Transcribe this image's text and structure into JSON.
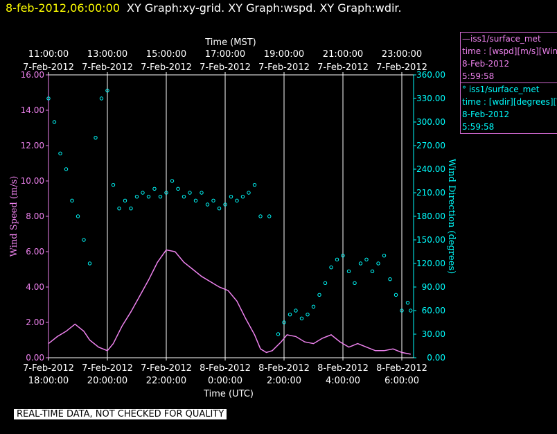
{
  "header": {
    "timestamp": "8-feb-2012,06:00:00",
    "titles": "XY Graph:xy-grid.  XY Graph:wspd.  XY Graph:wdir."
  },
  "colors": {
    "wspd": "#ee82ee",
    "wdir": "#00ffff",
    "grid": "#ffffff",
    "background": "#000000"
  },
  "legend": {
    "wspd": {
      "name": "—iss1/surface_met",
      "field": "time : [wspd][m/s][Wind",
      "date": "8-Feb-2012",
      "time": "5:59:58"
    },
    "wdir": {
      "name": "° iss1/surface_met",
      "field": "time : [wdir][degrees][V",
      "date": "8-Feb-2012",
      "time": "5:59:58"
    }
  },
  "footer": {
    "quality_note": "REAL-TIME DATA, NOT CHECKED FOR QUALITY"
  },
  "chart_data": {
    "type": "line",
    "top_axis": {
      "label": "Time (MST)",
      "ticks": [
        [
          "11:00:00",
          "7-Feb-2012"
        ],
        [
          "13:00:00",
          "7-Feb-2012"
        ],
        [
          "15:00:00",
          "7-Feb-2012"
        ],
        [
          "17:00:00",
          "7-Feb-2012"
        ],
        [
          "19:00:00",
          "7-Feb-2012"
        ],
        [
          "21:00:00",
          "7-Feb-2012"
        ],
        [
          "23:00:00",
          "7-Feb-2012"
        ]
      ]
    },
    "bottom_axis": {
      "label": "Time (UTC)",
      "ticks": [
        [
          "7-Feb-2012",
          "18:00:00"
        ],
        [
          "7-Feb-2012",
          "20:00:00"
        ],
        [
          "7-Feb-2012",
          "22:00:00"
        ],
        [
          "8-Feb-2012",
          "0:00:00"
        ],
        [
          "8-Feb-2012",
          "2:00:00"
        ],
        [
          "8-Feb-2012",
          "4:00:00"
        ],
        [
          "8-Feb-2012",
          "6:00:00"
        ]
      ]
    },
    "x_hours_range": [
      0,
      12.4
    ],
    "x_tick_hours": [
      0,
      2,
      4,
      6,
      8,
      10,
      12
    ],
    "x_grid_hours": [
      2,
      4,
      6,
      8,
      10,
      12
    ],
    "left_axis": {
      "label": "Wind Speed (m/s)",
      "range": [
        0,
        16
      ],
      "ticks": [
        "0.00",
        "2.00",
        "4.00",
        "6.00",
        "8.00",
        "10.00",
        "12.00",
        "14.00",
        "16.00"
      ]
    },
    "right_axis": {
      "label": "Wind Direction (degrees)",
      "range": [
        0,
        360
      ],
      "ticks": [
        "0.00",
        "30.00",
        "60.00",
        "90.00",
        "120.00",
        "150.00",
        "180.00",
        "210.00",
        "240.00",
        "270.00",
        "300.00",
        "330.00",
        "360.00"
      ]
    },
    "series": [
      {
        "name": "iss1/surface_met",
        "axis": "left",
        "style": "line",
        "points": [
          [
            0.0,
            0.8
          ],
          [
            0.3,
            1.2
          ],
          [
            0.6,
            1.5
          ],
          [
            0.9,
            1.9
          ],
          [
            1.2,
            1.5
          ],
          [
            1.4,
            1.0
          ],
          [
            1.7,
            0.6
          ],
          [
            2.0,
            0.4
          ],
          [
            2.2,
            0.8
          ],
          [
            2.5,
            1.8
          ],
          [
            2.8,
            2.6
          ],
          [
            3.1,
            3.5
          ],
          [
            3.4,
            4.4
          ],
          [
            3.7,
            5.4
          ],
          [
            4.0,
            6.1
          ],
          [
            4.3,
            6.0
          ],
          [
            4.6,
            5.4
          ],
          [
            4.9,
            5.0
          ],
          [
            5.2,
            4.6
          ],
          [
            5.5,
            4.3
          ],
          [
            5.8,
            4.0
          ],
          [
            6.1,
            3.8
          ],
          [
            6.4,
            3.2
          ],
          [
            6.7,
            2.2
          ],
          [
            7.0,
            1.3
          ],
          [
            7.2,
            0.5
          ],
          [
            7.4,
            0.3
          ],
          [
            7.6,
            0.4
          ],
          [
            7.9,
            0.9
          ],
          [
            8.1,
            1.3
          ],
          [
            8.4,
            1.2
          ],
          [
            8.7,
            0.9
          ],
          [
            9.0,
            0.8
          ],
          [
            9.3,
            1.1
          ],
          [
            9.6,
            1.3
          ],
          [
            9.9,
            0.9
          ],
          [
            10.2,
            0.6
          ],
          [
            10.5,
            0.8
          ],
          [
            10.8,
            0.6
          ],
          [
            11.1,
            0.4
          ],
          [
            11.4,
            0.4
          ],
          [
            11.7,
            0.5
          ],
          [
            12.0,
            0.3
          ],
          [
            12.3,
            0.2
          ]
        ]
      },
      {
        "name": "iss1/surface_met",
        "axis": "right",
        "style": "markers",
        "points": [
          [
            0.0,
            330
          ],
          [
            0.2,
            300
          ],
          [
            0.4,
            260
          ],
          [
            0.6,
            240
          ],
          [
            0.8,
            200
          ],
          [
            1.0,
            180
          ],
          [
            1.2,
            150
          ],
          [
            1.4,
            120
          ],
          [
            1.6,
            280
          ],
          [
            1.8,
            330
          ],
          [
            2.0,
            340
          ],
          [
            2.2,
            220
          ],
          [
            2.4,
            190
          ],
          [
            2.6,
            200
          ],
          [
            2.8,
            190
          ],
          [
            3.0,
            205
          ],
          [
            3.2,
            210
          ],
          [
            3.4,
            205
          ],
          [
            3.6,
            215
          ],
          [
            3.8,
            205
          ],
          [
            4.0,
            210
          ],
          [
            4.2,
            225
          ],
          [
            4.4,
            215
          ],
          [
            4.6,
            205
          ],
          [
            4.8,
            210
          ],
          [
            5.0,
            200
          ],
          [
            5.2,
            210
          ],
          [
            5.4,
            195
          ],
          [
            5.6,
            200
          ],
          [
            5.8,
            190
          ],
          [
            6.0,
            195
          ],
          [
            6.2,
            205
          ],
          [
            6.4,
            200
          ],
          [
            6.6,
            205
          ],
          [
            6.8,
            210
          ],
          [
            7.0,
            220
          ],
          [
            7.2,
            180
          ],
          [
            7.5,
            180
          ],
          [
            7.8,
            30
          ],
          [
            8.0,
            45
          ],
          [
            8.2,
            55
          ],
          [
            8.4,
            60
          ],
          [
            8.6,
            50
          ],
          [
            8.8,
            55
          ],
          [
            9.0,
            65
          ],
          [
            9.2,
            80
          ],
          [
            9.4,
            95
          ],
          [
            9.6,
            115
          ],
          [
            9.8,
            125
          ],
          [
            10.0,
            130
          ],
          [
            10.2,
            110
          ],
          [
            10.4,
            95
          ],
          [
            10.6,
            120
          ],
          [
            10.8,
            125
          ],
          [
            11.0,
            110
          ],
          [
            11.2,
            120
          ],
          [
            11.4,
            130
          ],
          [
            11.6,
            100
          ],
          [
            11.8,
            80
          ],
          [
            12.0,
            60
          ],
          [
            12.2,
            70
          ],
          [
            12.3,
            60
          ]
        ]
      }
    ]
  }
}
